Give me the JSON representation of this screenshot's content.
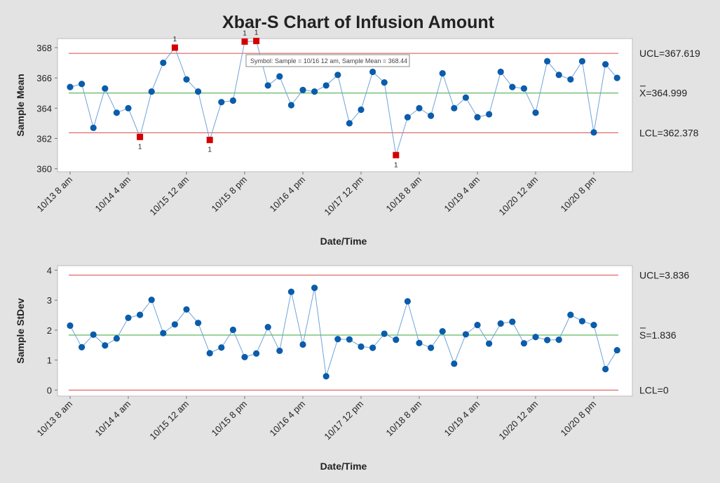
{
  "chart_data": {
    "type": "line",
    "title": "Xbar-S Chart of Infusion Amount",
    "x_tick_labels": [
      "10/13 8 am",
      "10/14 4 am",
      "10/15 12 am",
      "10/15 8 pm",
      "10/16 4 pm",
      "10/17 12 pm",
      "10/18 8 am",
      "10/19 4 am",
      "10/20 12 am",
      "10/20 8 pm"
    ],
    "x_tick_indices": [
      1,
      6,
      11,
      16,
      21,
      26,
      31,
      36,
      41,
      46
    ],
    "xlabel": "Date/Time",
    "tooltip": "Symbol:  Sample = 10/16 12 am, Sample Mean = 368.44",
    "charts": [
      {
        "name": "xbar",
        "ylabel": "Sample Mean",
        "ylim": [
          359.8,
          368.6
        ],
        "yticks": [
          360,
          362,
          364,
          366,
          368
        ],
        "ucl": 367.619,
        "center": 364.999,
        "lcl": 362.378,
        "ucl_label": "UCL=367.619",
        "center_label": "X=364.999",
        "lcl_label": "LCL=362.378",
        "values": [
          365.4,
          365.6,
          362.7,
          365.3,
          363.7,
          364.0,
          362.1,
          365.1,
          367.0,
          368.0,
          365.9,
          365.1,
          361.9,
          364.4,
          364.5,
          368.4,
          368.44,
          365.5,
          366.1,
          364.2,
          365.2,
          365.1,
          365.5,
          366.2,
          363.0,
          363.9,
          366.4,
          365.7,
          360.9,
          363.4,
          364.0,
          363.5,
          366.3,
          364.0,
          364.7,
          363.4,
          363.6,
          366.4,
          365.4,
          365.3,
          363.7,
          367.1,
          366.2,
          365.9,
          367.1,
          362.4,
          366.9,
          366.0
        ],
        "out_of_control": [
          7,
          10,
          13,
          16,
          17,
          29
        ],
        "flag_text": "1"
      },
      {
        "name": "s",
        "ylabel": "Sample StDev",
        "ylim": [
          -0.2,
          4.15
        ],
        "yticks": [
          0,
          1,
          2,
          3,
          4
        ],
        "ucl": 3.836,
        "center": 1.836,
        "lcl": 0,
        "ucl_label": "UCL=3.836",
        "center_label": "S=1.836",
        "lcl_label": "LCL=0",
        "values": [
          2.15,
          1.43,
          1.85,
          1.49,
          1.72,
          2.41,
          2.51,
          3.01,
          1.9,
          2.19,
          2.69,
          2.24,
          1.23,
          1.42,
          2.01,
          1.1,
          1.22,
          2.1,
          1.31,
          3.28,
          1.52,
          3.41,
          0.46,
          1.7,
          1.69,
          1.45,
          1.41,
          1.88,
          1.68,
          2.96,
          1.57,
          1.41,
          1.96,
          0.88,
          1.86,
          2.17,
          1.55,
          2.22,
          2.28,
          1.56,
          1.77,
          1.67,
          1.68,
          2.51,
          2.3,
          2.17,
          0.7,
          1.33
        ],
        "out_of_control": [],
        "flag_text": "1"
      }
    ]
  }
}
